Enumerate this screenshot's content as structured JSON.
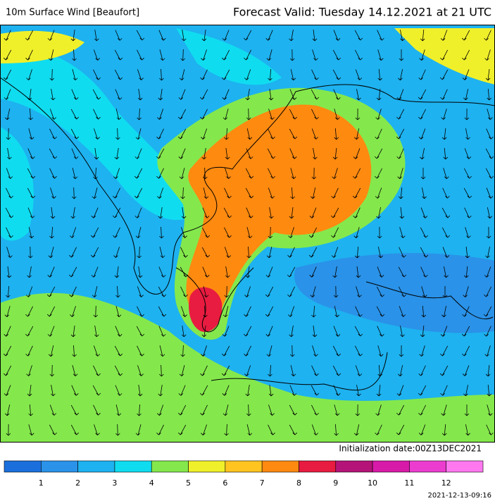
{
  "header": {
    "title": "10m Surface Wind [Beaufort]",
    "forecast": "Forecast Valid:  Tuesday 14.12.2021 at 21 UTC"
  },
  "initialization": "Initialization date:00Z13DEC2021",
  "colorbar": {
    "colors": [
      "#1a6fdc",
      "#2a92e8",
      "#1eb2f0",
      "#10dcf0",
      "#84e84c",
      "#f0f02a",
      "#ffc420",
      "#ff8a10",
      "#e81c40",
      "#b41478",
      "#d81aa8",
      "#ec3cd0",
      "#ff78f0"
    ],
    "labels": [
      1,
      2,
      3,
      4,
      5,
      6,
      7,
      8,
      9,
      10,
      11,
      12
    ]
  },
  "timestamp": "2021-12-13-09:16"
}
